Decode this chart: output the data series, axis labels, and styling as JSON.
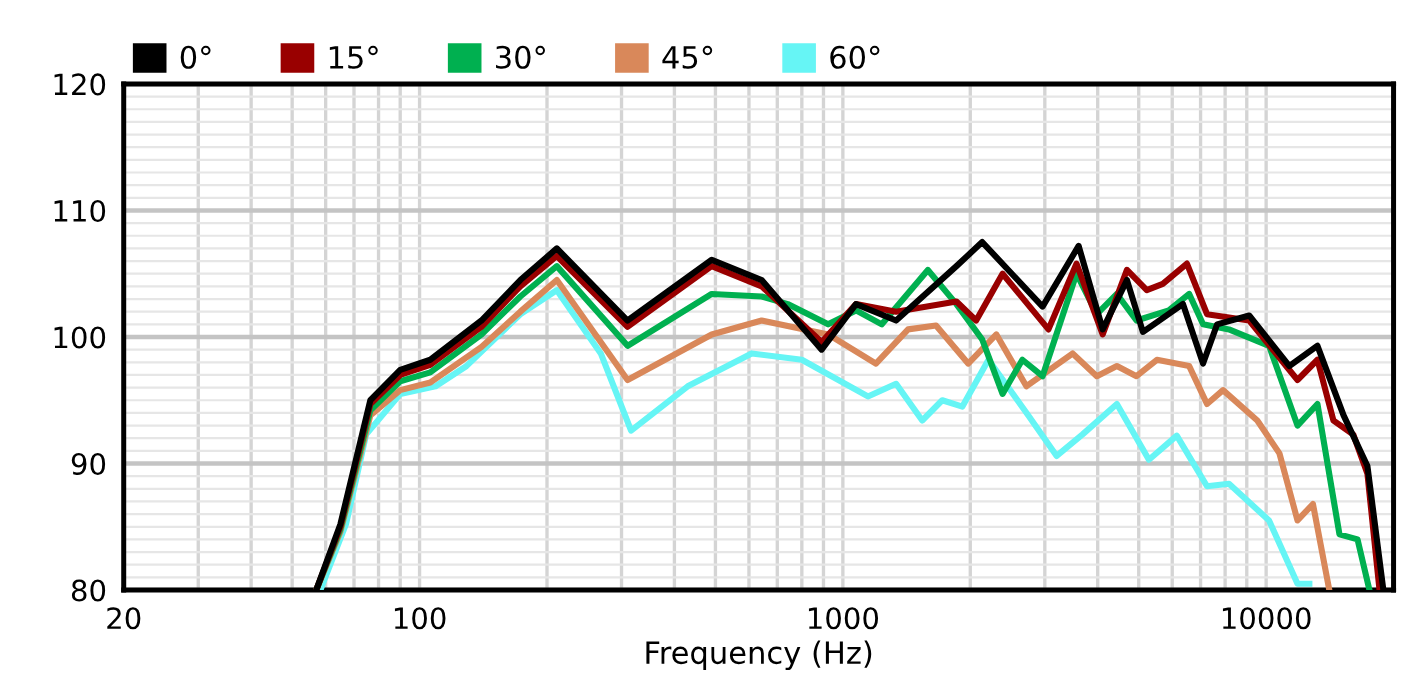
{
  "chart_data": {
    "type": "line",
    "xlabel": "Frequency (Hz)",
    "log": "x",
    "xlim": [
      20,
      20000
    ],
    "ylim": [
      80,
      120
    ],
    "xticks": [
      20,
      100,
      1000,
      10000
    ],
    "yticks": [
      80,
      90,
      100,
      110,
      120
    ],
    "grid": true,
    "legend": "top left",
    "marker": "none",
    "line_style": "solid",
    "series": [
      {
        "name": "0°",
        "color": "#000000",
        "x": [
          57,
          65,
          76.5,
          90,
          106,
          140,
          173,
          211,
          310,
          490,
          643,
          891,
          1074,
          1336,
          1855,
          2134,
          2963,
          3606,
          4110,
          4690,
          5115,
          6360,
          7095,
          7660,
          9120,
          11350,
          13220,
          15240,
          17350,
          18920
        ],
        "values": [
          80,
          85.2,
          95,
          97.4,
          98.2,
          101.3,
          104.5,
          107,
          101.3,
          106.1,
          104.5,
          99,
          102.6,
          101.3,
          105.6,
          107.5,
          102.4,
          107.2,
          100.6,
          104.5,
          100.4,
          102.6,
          97.9,
          101,
          101.7,
          97.7,
          99.3,
          93.8,
          89.8,
          80
        ]
      },
      {
        "name": "15°",
        "color": "#990000",
        "x": [
          57,
          65,
          76.5,
          90,
          106,
          140,
          173,
          211,
          310,
          490,
          643,
          891,
          1074,
          1336,
          1855,
          2065,
          2384,
          3060,
          3564,
          4110,
          4690,
          5224,
          5700,
          6500,
          7250,
          9120,
          11860,
          13220,
          14420,
          16060,
          17350,
          18530
        ],
        "values": [
          80,
          85,
          94.7,
          97,
          97.8,
          100.8,
          104,
          106.4,
          100.8,
          105.6,
          104,
          99.6,
          102.6,
          102,
          102.8,
          101.3,
          105,
          100.6,
          105.8,
          100.2,
          105.3,
          103.7,
          104.2,
          105.8,
          101.8,
          101.3,
          96.6,
          98.2,
          93.4,
          92.3,
          89.2,
          80
        ]
      },
      {
        "name": "30°",
        "color": "#00b050",
        "x": [
          57,
          65,
          76.5,
          90,
          106,
          140,
          173,
          211,
          310,
          490,
          643,
          741,
          923,
          1074,
          1236,
          1588,
          1855,
          2134,
          2384,
          2655,
          2963,
          3564,
          3981,
          4440,
          4940,
          5890,
          6580,
          7095,
          8170,
          10160,
          11860,
          13220,
          14900,
          16440,
          17540
        ],
        "values": [
          80,
          84.8,
          94.2,
          96.5,
          97.2,
          100.2,
          103.2,
          105.6,
          99.3,
          103.4,
          103.2,
          102.6,
          101,
          102.1,
          101,
          105.3,
          102.6,
          99.8,
          95.5,
          98.2,
          96.9,
          105,
          101.8,
          103.4,
          101.3,
          102.1,
          103.4,
          101,
          100.6,
          99.3,
          93,
          94.7,
          84.4,
          84,
          80
        ]
      },
      {
        "name": "45°",
        "color": "#d9885a",
        "x": [
          57,
          65,
          76.5,
          90,
          106,
          140,
          173,
          211,
          310,
          490,
          643,
          923,
          1197,
          1426,
          1660,
          1977,
          2305,
          2714,
          3490,
          3981,
          4440,
          4940,
          5520,
          6580,
          7250,
          7910,
          9530,
          10750,
          11860,
          12900,
          14100
        ],
        "values": [
          80,
          84.6,
          93.8,
          95.8,
          96.4,
          99.2,
          102,
          104.5,
          96.6,
          100.2,
          101.3,
          100.2,
          97.9,
          100.6,
          100.9,
          97.9,
          100.2,
          96.1,
          98.7,
          96.9,
          97.7,
          96.9,
          98.2,
          97.7,
          94.7,
          95.8,
          93.4,
          90.8,
          85.5,
          86.8,
          80
        ]
      },
      {
        "name": "60°",
        "color": "#66f5f5",
        "x": [
          58.3,
          67,
          74.8,
          90,
          109,
          129,
          173,
          211,
          268,
          316,
          430,
          609,
          800,
          1146,
          1336,
          1540,
          1717,
          1916,
          2208,
          2743,
          3200,
          3684,
          4440,
          5285,
          6150,
          7250,
          8170,
          10160,
          11860,
          12650
        ],
        "values": [
          80,
          85.2,
          92.3,
          95.5,
          96.1,
          97.7,
          101.8,
          103.7,
          98.7,
          92.6,
          96.1,
          98.7,
          98.2,
          95.3,
          96.3,
          93.4,
          95,
          94.5,
          98.2,
          93.8,
          90.6,
          92.3,
          94.7,
          90.3,
          92.2,
          88.2,
          88.4,
          85.5,
          80.5,
          80.5
        ]
      }
    ]
  }
}
